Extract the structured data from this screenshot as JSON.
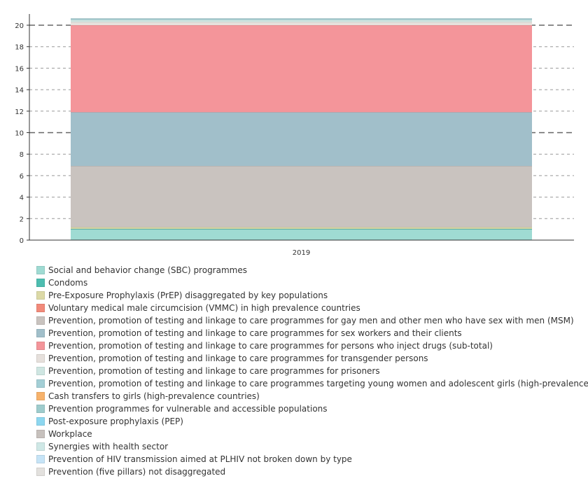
{
  "chart_data": {
    "type": "area",
    "categories": [
      "2019"
    ],
    "yticks": [
      0,
      2,
      4,
      6,
      8,
      10,
      12,
      14,
      16,
      18,
      20
    ],
    "ylim": [
      0,
      21
    ],
    "grid": true,
    "stacked": true,
    "legend_position": "bottom",
    "series": [
      {
        "name": "Social and behavior change (SBC) programmes",
        "values": [
          1.0
        ],
        "color": "#9fdbd3"
      },
      {
        "name": "Condoms",
        "values": [
          0.05
        ],
        "color": "#4dbdb0"
      },
      {
        "name": "Pre-Exposure Prophylaxis (PrEP) disaggregated by key populations",
        "values": [
          0.15
        ],
        "color": "#dcd9a6"
      },
      {
        "name": "Voluntary medical male circumcision (VMMC) in high prevalence countries",
        "values": [
          0.0
        ],
        "color": "#f28a7a"
      },
      {
        "name": "Prevention, promotion of testing and linkage to care programmes for gay men and other men who have sex with men (MSM)",
        "values": [
          5.7
        ],
        "color": "#c9c3bf"
      },
      {
        "name": "Prevention, promotion of testing and linkage to care programmes for sex workers and their clients",
        "values": [
          5.0
        ],
        "color": "#a1bfca"
      },
      {
        "name": "Prevention, promotion of testing and linkage to care programmes for persons who inject drugs (sub-total)",
        "values": [
          8.1
        ],
        "color": "#f4959a"
      },
      {
        "name": "Prevention, promotion of testing and linkage to care programmes for transgender persons",
        "values": [
          0.3
        ],
        "color": "#e6e0dc"
      },
      {
        "name": "Prevention, promotion of testing and linkage to care programmes for prisoners",
        "values": [
          0.2
        ],
        "color": "#cfe6e2"
      },
      {
        "name": "Prevention, promotion of testing and linkage to care programmes targeting young women and adolescent girls (high-prevalence countries)",
        "values": [
          0.1
        ],
        "color": "#a3cfd6"
      },
      {
        "name": "Cash transfers to girls (high-prevalence countries)",
        "values": [
          0.0
        ],
        "color": "#f7b26b"
      },
      {
        "name": "Prevention programmes for vulnerable and accessible populations",
        "values": [
          0.0
        ],
        "color": "#9ecccd"
      },
      {
        "name": "Post-exposure prophylaxis (PEP)",
        "values": [
          0.0
        ],
        "color": "#8dd7f0"
      },
      {
        "name": "Workplace",
        "values": [
          0.0
        ],
        "color": "#c7c1bd"
      },
      {
        "name": "Synergies with health sector",
        "values": [
          0.0
        ],
        "color": "#cfe8e6"
      },
      {
        "name": "Prevention of HIV transmission aimed at PLHIV not broken down by type",
        "values": [
          0.0
        ],
        "color": "#c6e4f7"
      },
      {
        "name": "Prevention (five pillars) not disaggregated",
        "values": [
          0.0
        ],
        "color": "#e3e1de"
      }
    ]
  }
}
